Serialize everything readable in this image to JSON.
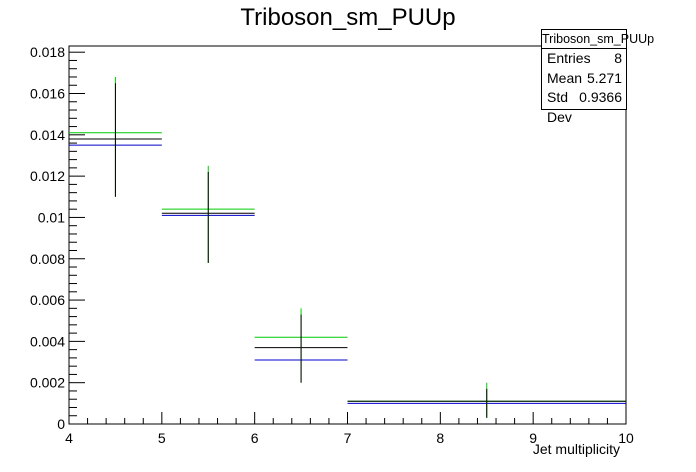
{
  "chart_data": {
    "type": "histogram",
    "title": "Triboson_sm_PUUp",
    "xlabel": "Jet multiplicity",
    "ylabel": "",
    "xlim": [
      4,
      10
    ],
    "ylim": [
      0,
      0.0183
    ],
    "x_ticks": [
      4,
      5,
      6,
      7,
      8,
      9,
      10
    ],
    "y_ticks": [
      0,
      0.002,
      0.004,
      0.006,
      0.008,
      0.01,
      0.012,
      0.014,
      0.016,
      0.018
    ],
    "y_tick_labels": [
      "0",
      "0.002",
      "0.004",
      "0.006",
      "0.008",
      "0.01",
      "0.012",
      "0.014",
      "0.016",
      "0.018"
    ],
    "bins": [
      {
        "x_low": 4,
        "x_high": 5,
        "x_center": 4.5,
        "err_low": 0.011,
        "err_high": 0.0168
      },
      {
        "x_low": 5,
        "x_high": 6,
        "x_center": 5.5,
        "err_low": 0.0078,
        "err_high": 0.0125
      },
      {
        "x_low": 6,
        "x_high": 7,
        "x_center": 6.5,
        "err_low": 0.002,
        "err_high": 0.0056
      },
      {
        "x_low": 7,
        "x_high": 10,
        "x_center": 8.5,
        "err_low": 0.0003,
        "err_high": 0.002
      }
    ],
    "series": [
      {
        "color": "#00cc00",
        "values": [
          0.0141,
          0.0104,
          0.0042,
          0.0011
        ]
      },
      {
        "color": "#000000",
        "values": [
          0.0138,
          0.0102,
          0.0037,
          0.0011
        ]
      },
      {
        "color": "#0000cc",
        "values": [
          0.0135,
          0.0101,
          0.0031,
          0.001
        ]
      }
    ],
    "grid": false,
    "stats": {
      "name": "Triboson_sm_PUUp",
      "entries_label": "Entries",
      "entries": "8",
      "mean_label": "Mean",
      "mean": "5.271",
      "stddev_label": "Std Dev",
      "stddev": "0.9366"
    }
  }
}
